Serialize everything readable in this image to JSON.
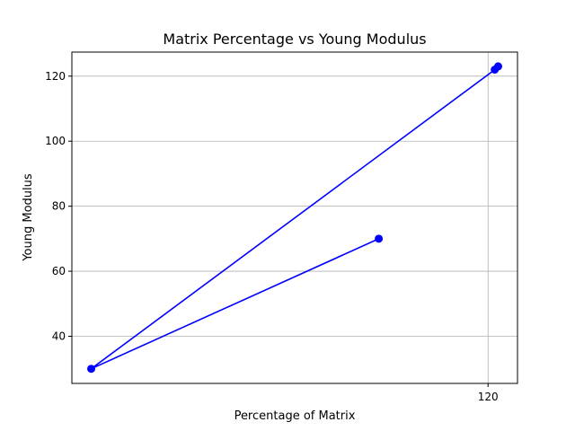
{
  "chart_data": {
    "type": "line",
    "title": "Matrix Percentage vs Young Modulus",
    "xlabel": "Percentage of Matrix",
    "ylabel": "Young Modulus",
    "xlim": [
      70.5,
      123.5
    ],
    "ylim": [
      25.5,
      127.4
    ],
    "xticks": [
      120
    ],
    "yticks": [
      40,
      60,
      80,
      100,
      120
    ],
    "grid": true,
    "series": [
      {
        "color": "#0000ff",
        "points": [
          {
            "x": 107,
            "y": 70
          },
          {
            "x": 72.8,
            "y": 30
          },
          {
            "x": 120.8,
            "y": 122
          },
          {
            "x": 121.2,
            "y": 123
          }
        ]
      }
    ]
  }
}
